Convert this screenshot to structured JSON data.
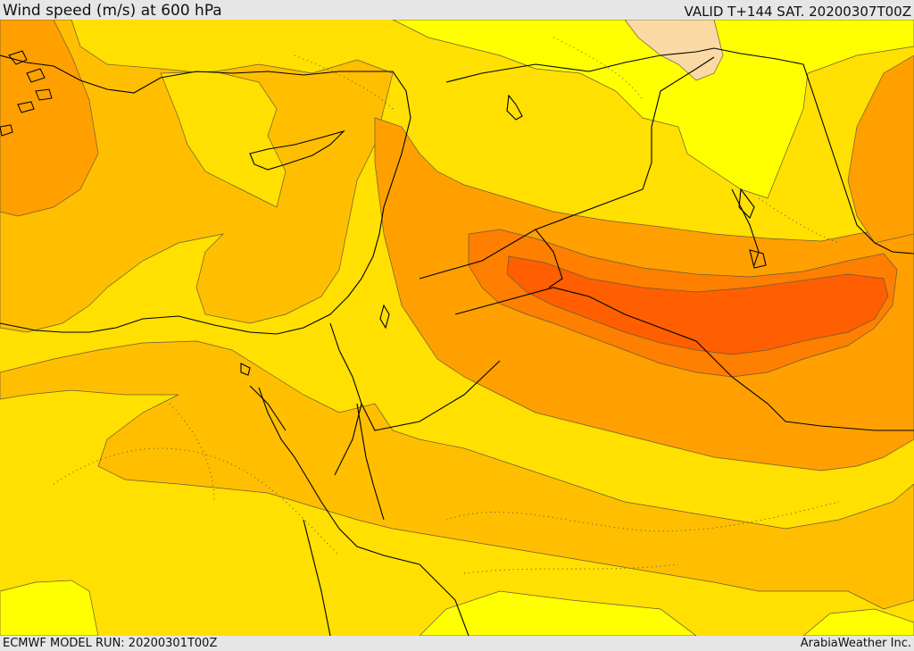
{
  "header": {
    "title": "Wind speed (m/s) at 600 hPa",
    "valid": "VALID T+144 SAT. 20200307T00Z"
  },
  "footer": {
    "model_run": "ECMWF MODEL RUN: 20200301T00Z",
    "credit": "ArabiaWeather Inc."
  },
  "map": {
    "fill_levels": [
      {
        "name": "pale",
        "color": "#fbd9a4"
      },
      {
        "name": "yellow",
        "color": "#ffff00"
      },
      {
        "name": "gold",
        "color": "#ffe000"
      },
      {
        "name": "amber",
        "color": "#ffbf00"
      },
      {
        "name": "orange",
        "color": "#ffa000"
      },
      {
        "name": "dark-orange",
        "color": "#ff7f00"
      },
      {
        "name": "red-orange",
        "color": "#ff5f00"
      }
    ]
  }
}
